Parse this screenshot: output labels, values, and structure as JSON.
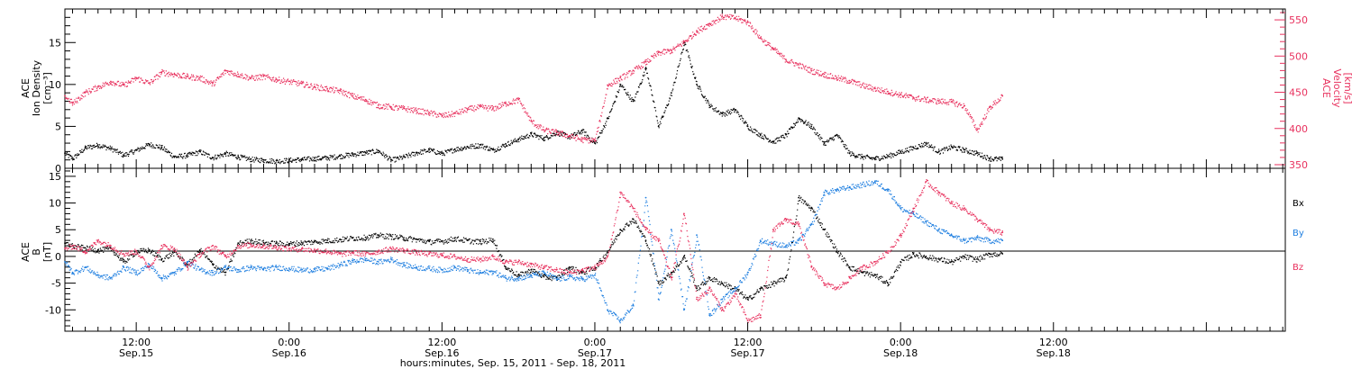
{
  "xaxis": {
    "title": "hours:minutes, Sep. 15, 2011 - Sep. 18, 2011",
    "range_hours": [
      -5.6,
      90.2
    ],
    "ticks": [
      {
        "h": 0,
        "time": "12:00",
        "date": "Sep.15"
      },
      {
        "h": 12,
        "time": "0:00",
        "date": "Sep.16"
      },
      {
        "h": 24,
        "time": "12:00",
        "date": "Sep.16"
      },
      {
        "h": 36,
        "time": "0:00",
        "date": "Sep.17"
      },
      {
        "h": 48,
        "time": "12:00",
        "date": "Sep.17"
      },
      {
        "h": 60,
        "time": "0:00",
        "date": "Sep.18"
      },
      {
        "h": 72,
        "time": "12:00",
        "date": "Sep.18"
      }
    ]
  },
  "colors": {
    "black": "#000000",
    "red": "#e8315e",
    "blue": "#1f7fe0"
  },
  "panel1": {
    "left_label": [
      "ACE",
      "Ion Density",
      "[cm⁻³]"
    ],
    "right_label": [
      "ACE",
      "Velocity",
      "[km/s]"
    ],
    "left_ticks": [
      "0",
      "5",
      "10",
      "15"
    ],
    "right_ticks": [
      "350",
      "400",
      "450",
      "500",
      "550"
    ]
  },
  "panel2": {
    "left_label": [
      "ACE",
      "B",
      "[nT]"
    ],
    "y_ticks": [
      "-10",
      "-5",
      "0",
      "5",
      "10",
      "15"
    ],
    "legend": [
      "Bx",
      "By",
      "Bz"
    ]
  },
  "chart_data": [
    {
      "type": "scatter",
      "x_unit": "hours relative to 12:00 Sep.15, 2011",
      "ylim": [
        0,
        19
      ],
      "y2lim": [
        345,
        565
      ],
      "series": [
        {
          "name": "Ion Density",
          "axis": "left",
          "color": "#000000",
          "x": [
            -5.6,
            -5,
            -4,
            -3,
            -2,
            -1,
            0,
            1,
            2,
            3,
            4,
            5,
            6,
            7,
            8,
            9,
            10,
            11,
            12,
            13,
            14,
            15,
            16,
            17,
            18,
            19,
            20,
            21,
            22,
            23,
            24,
            25,
            26,
            27,
            28,
            29,
            30,
            31,
            32,
            33,
            34,
            35,
            36,
            37,
            38,
            39,
            40,
            41,
            42,
            43,
            44,
            45,
            46,
            47,
            48,
            49,
            50,
            51,
            52,
            53,
            54,
            55,
            56,
            57,
            58,
            59,
            60,
            61,
            62,
            63,
            64,
            65,
            66,
            67,
            68
          ],
          "y": [
            1.8,
            1.2,
            2.5,
            2.8,
            2.4,
            1.6,
            2.2,
            2.9,
            2.5,
            1.4,
            1.6,
            2.0,
            1.3,
            1.8,
            1.4,
            1.1,
            1.0,
            0.9,
            1.0,
            1.1,
            1.2,
            1.3,
            1.5,
            1.7,
            1.9,
            2.1,
            1.0,
            1.4,
            1.9,
            2.2,
            1.8,
            2.3,
            2.6,
            2.8,
            2.2,
            2.9,
            3.5,
            4.1,
            3.6,
            4.3,
            3.8,
            4.5,
            3.0,
            6.0,
            10.0,
            8.0,
            12.0,
            5.0,
            9.0,
            15.0,
            10.0,
            7.5,
            6.5,
            7.0,
            5.0,
            4.0,
            3.2,
            4.0,
            6.0,
            5.0,
            3.0,
            4.0,
            1.8,
            1.4,
            1.2,
            1.5,
            2.0,
            2.5,
            3.0,
            2.0,
            2.6,
            2.2,
            1.8,
            1.2,
            1.1
          ]
        },
        {
          "name": "Velocity",
          "axis": "right",
          "color": "#e8315e",
          "x": [
            -5.6,
            -5,
            -4,
            -3,
            -2,
            -1,
            0,
            1,
            2,
            3,
            4,
            5,
            6,
            7,
            8,
            9,
            10,
            11,
            12,
            13,
            14,
            15,
            16,
            17,
            18,
            19,
            20,
            21,
            22,
            23,
            24,
            25,
            26,
            27,
            28,
            29,
            30,
            31,
            32,
            33,
            34,
            35,
            36,
            37,
            38,
            39,
            40,
            41,
            42,
            43,
            44,
            45,
            46,
            47,
            48,
            49,
            50,
            51,
            52,
            53,
            54,
            55,
            56,
            57,
            58,
            59,
            60,
            61,
            62,
            63,
            64,
            65,
            66,
            67,
            68
          ],
          "y": [
            445,
            435,
            450,
            458,
            465,
            460,
            470,
            463,
            478,
            475,
            472,
            470,
            462,
            480,
            475,
            470,
            472,
            468,
            465,
            462,
            458,
            455,
            452,
            445,
            440,
            432,
            430,
            428,
            425,
            422,
            418,
            421,
            427,
            430,
            428,
            435,
            440,
            410,
            398,
            395,
            390,
            385,
            384,
            460,
            470,
            480,
            492,
            505,
            508,
            520,
            535,
            545,
            555,
            553,
            547,
            525,
            510,
            495,
            488,
            480,
            475,
            470,
            466,
            460,
            455,
            451,
            447,
            443,
            440,
            438,
            437,
            431,
            398,
            430,
            445
          ]
        }
      ]
    },
    {
      "type": "scatter",
      "x_unit": "hours relative to 12:00 Sep.15, 2011",
      "ylim": [
        -14,
        16.5
      ],
      "series": [
        {
          "name": "Bx",
          "color": "#000000",
          "x": [
            -5.6,
            -5,
            -4,
            -3,
            -2,
            -1,
            0,
            1,
            2,
            3,
            4,
            5,
            6,
            7,
            8,
            9,
            10,
            11,
            12,
            13,
            14,
            15,
            16,
            17,
            18,
            19,
            20,
            21,
            22,
            23,
            24,
            25,
            26,
            27,
            28,
            29,
            30,
            31,
            32,
            33,
            34,
            35,
            36,
            37,
            38,
            39,
            40,
            41,
            42,
            43,
            44,
            45,
            46,
            47,
            48,
            49,
            50,
            51,
            52,
            53,
            54,
            55,
            56,
            57,
            58,
            59,
            60,
            61,
            62,
            63,
            64,
            65,
            66,
            67,
            68
          ],
          "y": [
            2.5,
            2.0,
            1.6,
            1.2,
            1.5,
            -1.0,
            1.0,
            1.2,
            -0.5,
            0.8,
            -1.5,
            1.2,
            -1.5,
            -3.0,
            2.5,
            3.0,
            2.6,
            2.5,
            2.4,
            2.6,
            2.8,
            3.0,
            3.2,
            3.5,
            3.6,
            4.0,
            3.8,
            3.5,
            3.2,
            2.8,
            2.9,
            3.4,
            3.0,
            2.8,
            3.2,
            -2.0,
            -3.5,
            -2.5,
            -3.8,
            -4.0,
            -2.0,
            -3.0,
            -2.0,
            1.0,
            5.0,
            7.0,
            3.0,
            -5.0,
            -3.0,
            0.0,
            -6.0,
            -4.0,
            -5.0,
            -6.0,
            -8.0,
            -6.0,
            -5.0,
            -4.0,
            11.0,
            9.0,
            5.0,
            1.0,
            -2.0,
            -3.0,
            -3.5,
            -5.0,
            -1.0,
            0.5,
            0.0,
            -0.5,
            -1.0,
            0.0,
            -0.5,
            0.5,
            0.5
          ]
        },
        {
          "name": "By",
          "color": "#1f7fe0",
          "x": [
            -5.6,
            -5,
            -4,
            -3,
            -2,
            -1,
            0,
            1,
            2,
            3,
            4,
            5,
            6,
            7,
            8,
            9,
            10,
            11,
            12,
            13,
            14,
            15,
            16,
            17,
            18,
            19,
            20,
            21,
            22,
            23,
            24,
            25,
            26,
            27,
            28,
            29,
            30,
            31,
            32,
            33,
            34,
            35,
            36,
            37,
            38,
            39,
            40,
            41,
            42,
            43,
            44,
            45,
            46,
            47,
            48,
            49,
            50,
            51,
            52,
            53,
            54,
            55,
            56,
            57,
            58,
            59,
            60,
            61,
            62,
            63,
            64,
            65,
            66,
            67,
            68
          ],
          "y": [
            -1.0,
            -3.0,
            -2.0,
            -3.5,
            -4.0,
            -2.0,
            -3.0,
            -1.5,
            -4.0,
            -3.0,
            -1.0,
            -2.5,
            -3.0,
            -2.0,
            -2.5,
            -2.0,
            -2.3,
            -2.0,
            -2.2,
            -2.5,
            -2.4,
            -2.2,
            -1.5,
            -0.8,
            -0.5,
            -1.0,
            -0.5,
            -1.5,
            -2.0,
            -2.2,
            -2.5,
            -2.0,
            -2.5,
            -3.0,
            -2.8,
            -4.0,
            -4.0,
            -3.5,
            -3.0,
            -4.2,
            -3.8,
            -4.2,
            -3.5,
            -10.0,
            -12.0,
            -9.0,
            11.0,
            -8.0,
            5.0,
            -10.0,
            4.0,
            -11.0,
            -8.0,
            -6.0,
            -3.0,
            3.0,
            2.5,
            2.0,
            3.0,
            6.0,
            12.0,
            12.5,
            13.0,
            13.5,
            14.0,
            12.5,
            9.0,
            8.0,
            6.5,
            5.0,
            4.0,
            3.0,
            3.5,
            3.0,
            3.0
          ]
        },
        {
          "name": "Bz",
          "color": "#e8315e",
          "x": [
            -5.6,
            -5,
            -4,
            -3,
            -2,
            -1,
            0,
            1,
            2,
            3,
            4,
            5,
            6,
            7,
            8,
            9,
            10,
            11,
            12,
            13,
            14,
            15,
            16,
            17,
            18,
            19,
            20,
            21,
            22,
            23,
            24,
            25,
            26,
            27,
            28,
            29,
            30,
            31,
            32,
            33,
            34,
            35,
            36,
            37,
            38,
            39,
            40,
            41,
            42,
            43,
            44,
            45,
            46,
            47,
            48,
            49,
            50,
            51,
            52,
            53,
            54,
            55,
            56,
            57,
            58,
            59,
            60,
            61,
            62,
            63,
            64,
            65,
            66,
            67,
            68
          ],
          "y": [
            1.5,
            2.0,
            1.0,
            3.0,
            2.0,
            0.5,
            1.0,
            -2.0,
            2.0,
            1.5,
            -2.0,
            0.5,
            2.0,
            0.0,
            2.0,
            2.2,
            2.0,
            1.8,
            1.5,
            1.4,
            1.2,
            1.0,
            0.5,
            0.8,
            0.5,
            1.0,
            1.5,
            1.2,
            0.8,
            0.5,
            0.3,
            0.0,
            -0.5,
            -0.5,
            0.0,
            -1.0,
            -1.0,
            -1.5,
            -2.0,
            -2.5,
            -3.0,
            -2.5,
            -2.0,
            0.0,
            12.0,
            9.0,
            5.0,
            3.0,
            -4.0,
            8.0,
            -8.0,
            -6.0,
            -10.0,
            -7.0,
            -12.0,
            -11.0,
            5.0,
            7.0,
            6.0,
            -2.0,
            -5.0,
            -6.0,
            -4.0,
            -2.0,
            -1.0,
            1.0,
            4.0,
            9.0,
            14.0,
            12.0,
            10.0,
            9.0,
            7.0,
            5.0,
            4.5
          ]
        }
      ]
    }
  ]
}
